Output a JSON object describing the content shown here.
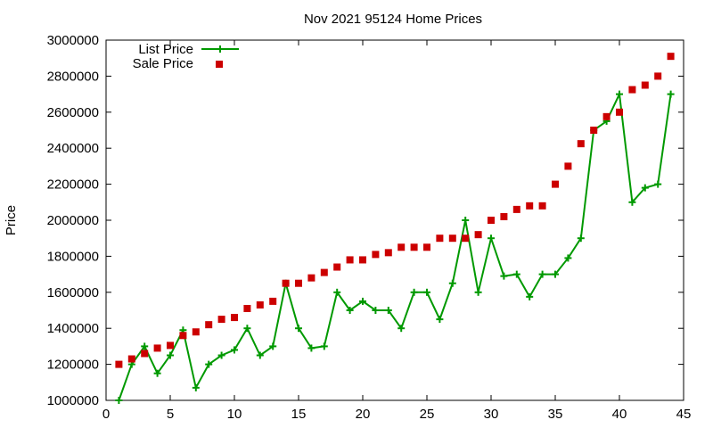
{
  "chart_data": {
    "type": "line",
    "title": "Nov 2021 95124 Home Prices",
    "xlabel": "",
    "ylabel": "Price",
    "xlim": [
      0,
      45
    ],
    "ylim": [
      1000000,
      3000000
    ],
    "xticks": [
      0,
      5,
      10,
      15,
      20,
      25,
      30,
      35,
      40,
      45
    ],
    "yticks": [
      1000000,
      1200000,
      1400000,
      1600000,
      1800000,
      2000000,
      2200000,
      2400000,
      2600000,
      2800000,
      3000000
    ],
    "grid": false,
    "legend_position": "top-left",
    "x": [
      1,
      2,
      3,
      4,
      5,
      6,
      7,
      8,
      9,
      10,
      11,
      12,
      13,
      14,
      15,
      16,
      17,
      18,
      19,
      20,
      21,
      22,
      23,
      24,
      25,
      26,
      27,
      28,
      29,
      30,
      31,
      32,
      33,
      34,
      35,
      36,
      37,
      38,
      39,
      40,
      41,
      42,
      43,
      44
    ],
    "series": [
      {
        "name": "List Price",
        "style": "linespoints",
        "color": "#009900",
        "values": [
          1000000,
          1200000,
          1300000,
          1150000,
          1250000,
          1390000,
          1070000,
          1200000,
          1250000,
          1280000,
          1400000,
          1250000,
          1300000,
          1650000,
          1400000,
          1290000,
          1300000,
          1600000,
          1500000,
          1550000,
          1500000,
          1500000,
          1400000,
          1600000,
          1600000,
          1450000,
          1650000,
          2000000,
          1600000,
          1900000,
          1690000,
          1700000,
          1575000,
          1700000,
          1700000,
          1790000,
          1900000,
          2500000,
          2550000,
          2700000,
          2100000,
          2180000,
          2200000,
          2700000
        ]
      },
      {
        "name": "Sale Price",
        "style": "points",
        "color": "#cc0000",
        "values": [
          1200000,
          1230000,
          1260000,
          1290000,
          1305000,
          1360000,
          1380000,
          1420000,
          1450000,
          1460000,
          1510000,
          1530000,
          1550000,
          1650000,
          1650000,
          1680000,
          1710000,
          1740000,
          1780000,
          1780000,
          1810000,
          1820000,
          1850000,
          1850000,
          1850000,
          1900000,
          1900000,
          1900000,
          1920000,
          2000000,
          2020000,
          2060000,
          2080000,
          2080000,
          2200000,
          2300000,
          2425000,
          2500000,
          2575000,
          2600000,
          2725000,
          2750000,
          2800000,
          2910000
        ]
      }
    ]
  }
}
